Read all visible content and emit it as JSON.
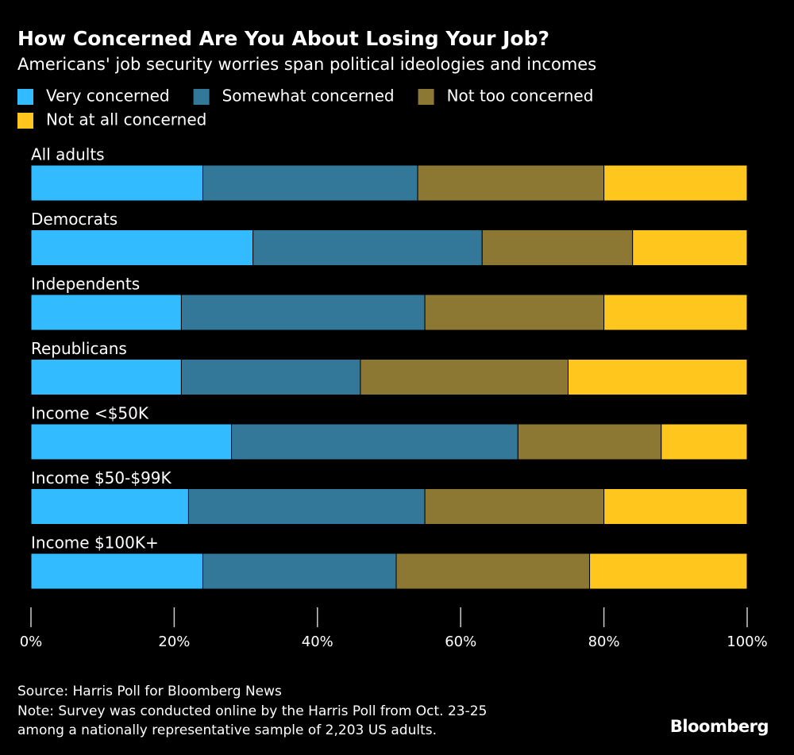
{
  "chart_data": {
    "type": "bar",
    "orientation": "horizontal",
    "stacked": true,
    "title": "How Concerned Are You About Losing Your Job?",
    "subtitle": "Americans' job security worries span political ideologies and incomes",
    "categories": [
      "All adults",
      "Democrats",
      "Independents",
      "Republicans",
      "Income <$50K",
      "Income $50-$99K",
      "Income $100K+"
    ],
    "series": [
      {
        "name": "Very concerned",
        "color": "#33bbff",
        "values": [
          24,
          31,
          21,
          21,
          28,
          22,
          24
        ]
      },
      {
        "name": "Somewhat concerned",
        "color": "#337799",
        "values": [
          30,
          32,
          34,
          25,
          40,
          33,
          27
        ]
      },
      {
        "name": "Not too concerned",
        "color": "#8d7833",
        "values": [
          26,
          21,
          25,
          29,
          20,
          25,
          27
        ]
      },
      {
        "name": "Not at all concerned",
        "color": "#ffc61e",
        "values": [
          20,
          16,
          20,
          25,
          12,
          20,
          22
        ]
      }
    ],
    "xlim": [
      0,
      100
    ],
    "xticks": [
      {
        "value": 0,
        "label": "0%"
      },
      {
        "value": 20,
        "label": "20%"
      },
      {
        "value": 40,
        "label": "40%"
      },
      {
        "value": 60,
        "label": "60%"
      },
      {
        "value": 80,
        "label": "80%"
      },
      {
        "value": 100,
        "label": "100%"
      }
    ],
    "source": "Source: Harris Poll for Bloomberg News",
    "notes": [
      "Note: Survey was conducted online by the Harris Poll from Oct. 23-25",
      "among a nationally representative sample of 2,203 US adults."
    ],
    "brand": "Bloomberg"
  }
}
